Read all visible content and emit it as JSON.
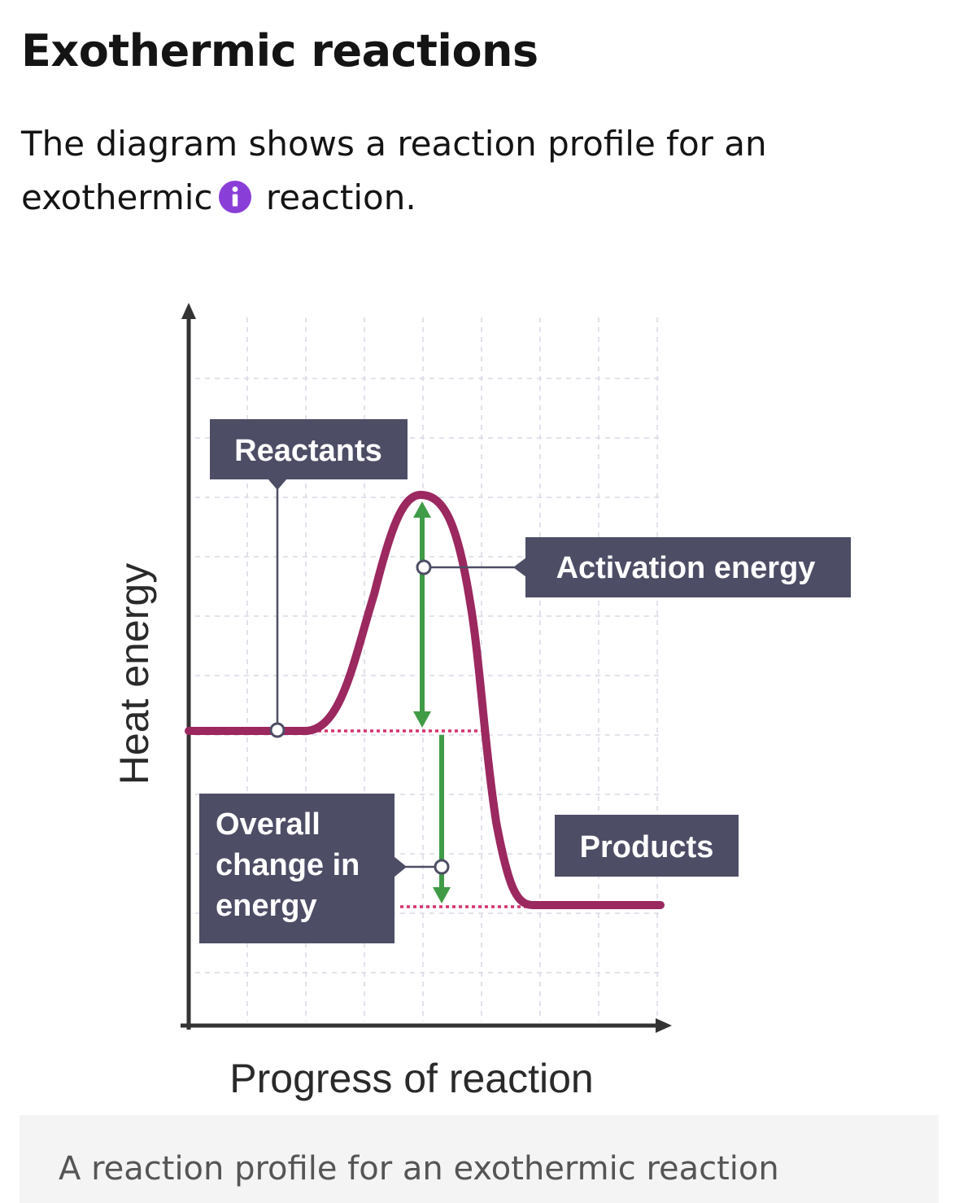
{
  "page": {
    "title": "Exothermic reactions",
    "intro_before": "The diagram shows a reaction profile for an exothermic",
    "intro_after": " reaction.",
    "info_icon": "info-icon",
    "info_icon_color": "#8a3ed8"
  },
  "diagram": {
    "y_axis_label": "Heat energy",
    "x_axis_label": "Progress of reaction",
    "labels": {
      "reactants": "Reactants",
      "activation_energy": "Activation energy",
      "overall_line1": "Overall",
      "overall_line2": "change in",
      "overall_line3": "energy",
      "products": "Products"
    },
    "colors": {
      "curve": "#9c2860",
      "arrows": "#3f9b46",
      "label_box": "#4d4d66",
      "dotted_lines": "#d6326e"
    }
  },
  "caption": {
    "text": "A reaction profile for an exothermic reaction"
  }
}
